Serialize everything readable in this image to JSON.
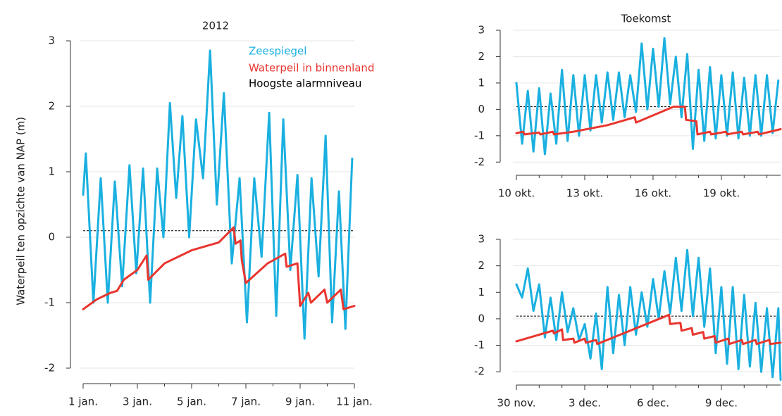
{
  "chart_data": [
    {
      "type": "line",
      "title": "2012",
      "ylabel": "Waterpeil ten opzichte van NAP (m)",
      "xlim": [
        0,
        10
      ],
      "ylim": [
        -2.2,
        3
      ],
      "yticks": [
        -2,
        -1,
        0,
        1,
        2,
        3
      ],
      "xticks": [
        {
          "value": 0,
          "label": "1 jan."
        },
        {
          "value": 2,
          "label": "3 jan."
        },
        {
          "value": 4,
          "label": "5 jan."
        },
        {
          "value": 6,
          "label": "7 jan."
        },
        {
          "value": 8,
          "label": "9 jan."
        },
        {
          "value": 10,
          "label": "11 jan."
        }
      ],
      "xminorticks": [
        1,
        3,
        5,
        7,
        9
      ],
      "grid": true,
      "legend": "upper right",
      "ref_line": {
        "name": "Hoogste alarmniveau",
        "value": 0.1,
        "color": "#000000"
      },
      "series": [
        {
          "name": "Zeespiegel",
          "color": "#1ab0e0",
          "x": [
            0,
            0.1,
            0.38,
            0.65,
            0.91,
            1.17,
            1.44,
            1.71,
            1.96,
            2.21,
            2.47,
            2.73,
            2.96,
            3.2,
            3.43,
            3.66,
            3.91,
            4.16,
            4.42,
            4.68,
            4.93,
            5.19,
            5.48,
            5.77,
            6.04,
            6.31,
            6.58,
            6.86,
            7.12,
            7.38,
            7.64,
            7.9,
            8.16,
            8.42,
            8.68,
            8.94,
            9.18,
            9.43,
            9.67,
            9.92
          ],
          "values": [
            0.65,
            1.28,
            -1.0,
            0.9,
            -1.0,
            0.85,
            -0.75,
            1.1,
            -0.55,
            1.05,
            -1.0,
            1.05,
            0.0,
            2.05,
            0.6,
            1.85,
            0.0,
            1.8,
            0.9,
            2.85,
            0.5,
            2.2,
            -0.4,
            0.9,
            -1.3,
            0.9,
            -0.3,
            1.9,
            -1.2,
            1.8,
            -0.5,
            0.95,
            -1.55,
            0.9,
            -0.6,
            1.55,
            -1.3,
            0.7,
            -1.4,
            1.2
          ]
        },
        {
          "name": "Waterpeil in binnenland",
          "color": "#e8362f",
          "x": [
            0,
            0.5,
            1.0,
            1.25,
            1.5,
            2.0,
            2.34,
            2.4,
            3.0,
            4.0,
            5.0,
            5.55,
            5.62,
            5.8,
            5.85,
            6.0,
            6.8,
            7.45,
            7.5,
            7.9,
            8.0,
            8.3,
            8.4,
            8.9,
            9.0,
            9.5,
            9.6,
            10
          ],
          "values": [
            -1.1,
            -0.95,
            -0.85,
            -0.82,
            -0.65,
            -0.5,
            -0.28,
            -0.65,
            -0.4,
            -0.2,
            -0.08,
            0.15,
            -0.1,
            -0.05,
            -0.35,
            -0.7,
            -0.4,
            -0.25,
            -0.45,
            -0.4,
            -1.05,
            -0.85,
            -1.0,
            -0.8,
            -1.0,
            -0.8,
            -1.1,
            -1.05
          ]
        }
      ]
    },
    {
      "type": "line",
      "title": "Toekomst",
      "xlim": [
        0,
        11.6
      ],
      "ylim": [
        -2.5,
        3
      ],
      "yticks": [
        -2,
        -1,
        0,
        1,
        2,
        3
      ],
      "xticks": [
        {
          "value": 0,
          "label": "10 okt."
        },
        {
          "value": 3,
          "label": "13 okt."
        },
        {
          "value": 6,
          "label": "16 okt."
        },
        {
          "value": 9,
          "label": "19 okt."
        }
      ],
      "xminorticks": [
        1,
        2,
        4,
        5,
        7,
        8,
        10,
        11
      ],
      "grid": true,
      "ref_line": {
        "value": 0.1,
        "color": "#000000"
      },
      "series": [
        {
          "color": "#1ab0e0",
          "x": [
            0,
            0.25,
            0.5,
            0.75,
            1,
            1.25,
            1.5,
            1.75,
            2,
            2.25,
            2.5,
            2.75,
            3,
            3.25,
            3.5,
            3.75,
            4,
            4.25,
            4.5,
            4.75,
            5,
            5.25,
            5.5,
            5.75,
            6,
            6.25,
            6.5,
            6.75,
            7,
            7.25,
            7.5,
            7.75,
            8,
            8.25,
            8.5,
            8.75,
            9,
            9.25,
            9.5,
            9.75,
            10,
            10.25,
            10.5,
            10.75,
            11,
            11.25,
            11.5
          ],
          "values": [
            1.0,
            -1.3,
            0.7,
            -1.6,
            0.8,
            -1.7,
            0.6,
            -1.3,
            1.5,
            -1.2,
            1.3,
            -1.0,
            1.3,
            -0.8,
            1.3,
            -0.5,
            1.4,
            -0.4,
            1.4,
            -0.3,
            1.3,
            -0.1,
            2.5,
            0.0,
            2.3,
            0.1,
            2.7,
            0.2,
            2.0,
            -0.3,
            2.1,
            -1.5,
            1.5,
            -1.2,
            1.6,
            -1.1,
            1.3,
            -1.0,
            1.4,
            -1.1,
            1.2,
            -1.0,
            1.3,
            -1.0,
            1.3,
            -0.9,
            1.1
          ]
        },
        {
          "color": "#e8362f",
          "x": [
            0,
            0.3,
            0.35,
            1.0,
            1.05,
            1.6,
            1.65,
            2.5,
            4.0,
            5.2,
            5.25,
            6.9,
            7.4,
            7.45,
            7.9,
            7.95,
            8.5,
            8.55,
            9.2,
            9.25,
            9.9,
            9.95,
            10.6,
            10.65,
            11.6
          ],
          "values": [
            -0.9,
            -0.85,
            -0.95,
            -0.88,
            -0.95,
            -0.85,
            -0.95,
            -0.85,
            -0.6,
            -0.3,
            -0.5,
            0.1,
            0.1,
            -0.4,
            -0.45,
            -0.95,
            -0.85,
            -0.95,
            -0.85,
            -0.95,
            -0.85,
            -0.95,
            -0.85,
            -0.95,
            -0.75
          ]
        }
      ]
    },
    {
      "type": "line",
      "xlim": [
        0,
        11.6
      ],
      "ylim": [
        -2.5,
        3
      ],
      "yticks": [
        -2,
        -1,
        0,
        1,
        2,
        3
      ],
      "xticks": [
        {
          "value": 0,
          "label": "30 nov."
        },
        {
          "value": 3,
          "label": "3 dec."
        },
        {
          "value": 6,
          "label": "6 dec."
        },
        {
          "value": 9,
          "label": "9 dec."
        }
      ],
      "xminorticks": [
        1,
        2,
        4,
        5,
        7,
        8,
        10,
        11
      ],
      "grid": true,
      "ref_line": {
        "value": 0.1,
        "color": "#000000"
      },
      "series": [
        {
          "color": "#1ab0e0",
          "x": [
            0,
            0.25,
            0.5,
            0.75,
            1,
            1.25,
            1.5,
            1.75,
            2,
            2.25,
            2.5,
            2.75,
            3,
            3.25,
            3.5,
            3.75,
            4,
            4.25,
            4.5,
            4.75,
            5,
            5.25,
            5.5,
            5.75,
            6,
            6.25,
            6.5,
            6.75,
            7,
            7.25,
            7.5,
            7.75,
            8,
            8.25,
            8.5,
            8.75,
            9,
            9.25,
            9.5,
            9.75,
            10,
            10.25,
            10.5,
            10.75,
            11,
            11.25,
            11.5,
            11.6
          ],
          "values": [
            1.3,
            0.8,
            1.9,
            0.3,
            1.3,
            -0.7,
            0.8,
            -0.8,
            1.0,
            -0.5,
            0.4,
            -0.8,
            -0.2,
            -1.5,
            0.2,
            -1.9,
            1.2,
            -1.3,
            0.9,
            -1.0,
            1.2,
            -0.6,
            1.0,
            -0.3,
            1.5,
            0.0,
            1.8,
            0.2,
            2.3,
            0.3,
            2.6,
            0.1,
            2.3,
            -0.3,
            1.9,
            -1.3,
            1.2,
            -1.7,
            1.2,
            -1.9,
            0.9,
            -1.8,
            0.6,
            -2.0,
            0.4,
            -2.2,
            0.4,
            -2.3
          ]
        },
        {
          "color": "#e8362f",
          "x": [
            0,
            1.0,
            1.6,
            1.65,
            2.0,
            2.05,
            2.5,
            2.55,
            3.0,
            3.05,
            3.5,
            3.55,
            6.7,
            6.75,
            7.2,
            7.25,
            7.7,
            7.75,
            8.2,
            8.25,
            8.7,
            8.75,
            9.3,
            9.35,
            9.9,
            9.95,
            10.5,
            10.55,
            11.1,
            11.15,
            11.6
          ],
          "values": [
            -0.85,
            -0.6,
            -0.45,
            -0.55,
            -0.4,
            -0.8,
            -0.75,
            -0.9,
            -0.75,
            -0.9,
            -0.8,
            -0.95,
            0.15,
            -0.2,
            -0.15,
            -0.45,
            -0.35,
            -0.6,
            -0.5,
            -0.75,
            -0.65,
            -0.9,
            -0.75,
            -0.95,
            -0.8,
            -0.95,
            -0.8,
            -0.95,
            -0.8,
            -0.95,
            -0.9
          ]
        }
      ]
    }
  ]
}
